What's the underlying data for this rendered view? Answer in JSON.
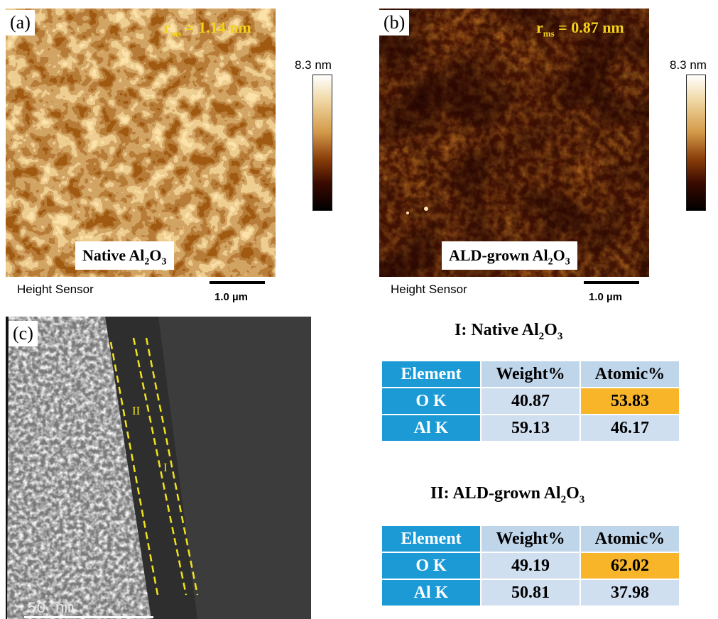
{
  "panel_a": {
    "label": "(a)",
    "rms_prefix": "r",
    "rms_sub": "ms",
    "rms_value": "= 1.14 nm",
    "caption_main": "Native Al",
    "caption_sub1": "2",
    "caption_o": "O",
    "caption_sub2": "3",
    "colorbar_max": "8.3 nm",
    "sensor_label": "Height Sensor",
    "scalebar": "1.0 µm"
  },
  "panel_b": {
    "label": "(b)",
    "rms_prefix": "r",
    "rms_sub": "ms",
    "rms_value": "= 0.87 nm",
    "caption_main": "ALD-grown Al",
    "caption_sub1": "2",
    "caption_o": "O",
    "caption_sub2": "3",
    "colorbar_max": "8.3 nm",
    "sensor_label": "Height Sensor",
    "scalebar": "1.0 µm"
  },
  "panel_c": {
    "label": "(c)",
    "region_II": "II",
    "region_I": "I",
    "scalebar": "50 nm"
  },
  "table_I": {
    "title_main": "I: Native Al",
    "title_sub1": "2",
    "title_o": "O",
    "title_sub2": "3",
    "headers": [
      "Element",
      "Weight%",
      "Atomic%"
    ],
    "rows": [
      {
        "element": "O K",
        "weight": "40.87",
        "atomic": "53.83"
      },
      {
        "element": "Al K",
        "weight": "59.13",
        "atomic": "46.17"
      }
    ]
  },
  "table_II": {
    "title_main": "II: ALD-grown Al",
    "title_sub1": "2",
    "title_o": "O",
    "title_sub2": "3",
    "headers": [
      "Element",
      "Weight%",
      "Atomic%"
    ],
    "rows": [
      {
        "element": "O K",
        "weight": "49.19",
        "atomic": "62.02"
      },
      {
        "element": "Al K",
        "weight": "50.81",
        "atomic": "37.98"
      }
    ]
  },
  "colors": {
    "rms_text": "#f2d21b",
    "table_header_blue": "#1b9ad6",
    "table_cell_light": "#cfdff0",
    "table_highlight_orange": "#f8b52a",
    "guide_lines": "#f2e21b"
  }
}
